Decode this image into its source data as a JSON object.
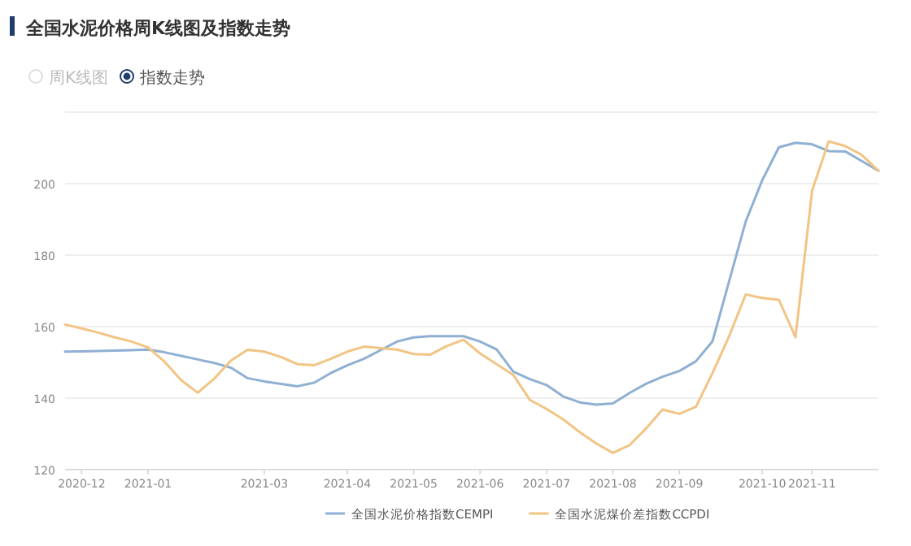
{
  "chart_data": {
    "type": "line",
    "title": "全国水泥价格周K线图及指数走势",
    "annotations": [
      "周K线图",
      "指数走势"
    ],
    "categories": [
      null,
      "2020-12",
      null,
      null,
      null,
      "2021-01",
      null,
      null,
      null,
      null,
      null,
      null,
      "2021-03",
      null,
      null,
      null,
      null,
      "2021-04",
      null,
      null,
      null,
      "2021-05",
      null,
      null,
      null,
      "2021-06",
      null,
      null,
      null,
      "2021-07",
      null,
      null,
      null,
      "2021-08",
      null,
      null,
      null,
      "2021-09",
      null,
      null,
      null,
      null,
      "2021-10",
      null,
      null,
      "2021-11",
      null,
      null,
      null,
      null
    ],
    "ylim": [
      120,
      220
    ],
    "yticks": [
      120,
      140,
      160,
      180,
      200
    ],
    "grid": "y",
    "legend": "bottom",
    "series": [
      {
        "name": "全国水泥价格指数CEMPI",
        "color": "#8fb0d3",
        "values": [
          153,
          153.1,
          153.2,
          153.3,
          153.4,
          153.6,
          152.8,
          151.8,
          150.8,
          149.8,
          148.5,
          145.6,
          144.7,
          144,
          143.3,
          144.3,
          147,
          149.2,
          151,
          153.4,
          155.8,
          157,
          157.3,
          157.3,
          157.3,
          155.8,
          153.6,
          147.4,
          145.3,
          143.7,
          140.5,
          138.8,
          138.2,
          138.5,
          141.4,
          144,
          146,
          147.6,
          150.3,
          155.9,
          172.7,
          189.4,
          201,
          210.2,
          211.4,
          211,
          209.1,
          209,
          206.3,
          203.6
        ]
      },
      {
        "name": "全国水泥煤价差指数CCPDI",
        "color": "#f2c484",
        "values": [
          160.6,
          159.5,
          158.3,
          157,
          155.8,
          154.2,
          150.2,
          145,
          141.5,
          145.5,
          150.5,
          153.5,
          153,
          151.5,
          149.5,
          149.2,
          151,
          153,
          154.4,
          154,
          153.6,
          152.3,
          152.2,
          154.6,
          156.3,
          152.5,
          149.5,
          146.5,
          139.5,
          137,
          134.1,
          130.5,
          127.3,
          124.7,
          126.8,
          131.5,
          136.8,
          135.6,
          137.6,
          147,
          157.3,
          169,
          168,
          167.5,
          157,
          198,
          211.8,
          210.5,
          208,
          203.6
        ]
      }
    ]
  }
}
